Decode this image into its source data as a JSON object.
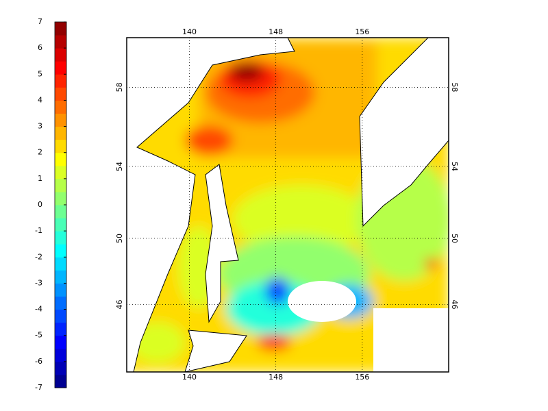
{
  "colorbar": {
    "lim": [
      -7,
      7
    ],
    "ticks": [
      7,
      6,
      5,
      4,
      3,
      2,
      1,
      0,
      -1,
      -2,
      -3,
      -4,
      -5,
      -6,
      -7
    ],
    "colors": [
      "#000092",
      "#0000b6",
      "#0000db",
      "#0000ff",
      "#0024ff",
      "#0049ff",
      "#006dff",
      "#0092ff",
      "#00b6ff",
      "#00dbff",
      "#00ffff",
      "#24ffdb",
      "#49ffb6",
      "#6dff92",
      "#92ff6d",
      "#b6ff49",
      "#dbff24",
      "#ffff00",
      "#ffdb00",
      "#ffb600",
      "#ff9200",
      "#ff6d00",
      "#ff4900",
      "#ff2400",
      "#ff0000",
      "#db0000",
      "#b60000",
      "#920000"
    ]
  },
  "map": {
    "lon_lim": [
      134.2,
      164
    ],
    "lat_lim": [
      41.6,
      60.3
    ],
    "lon_ticks": [
      140,
      148,
      156
    ],
    "lat_ticks": [
      58,
      54,
      50,
      46
    ],
    "grid": true
  }
}
